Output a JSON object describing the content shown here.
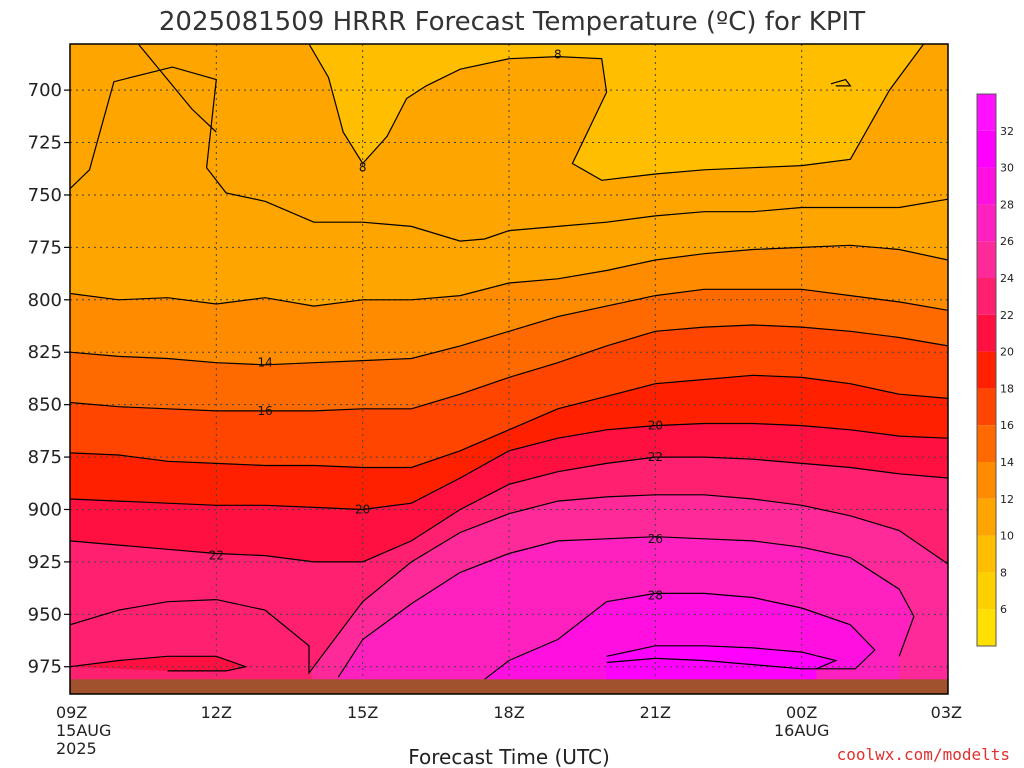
{
  "title": "2025081509 HRRR Forecast Temperature (ºC) for KPIT",
  "credit": "coolwx.com/modelts",
  "colors": {
    "ground": "#a0522d",
    "contour": "#000000",
    "grid": "#444444",
    "palette": [
      {
        "from": 4,
        "to": 6,
        "color": "#ffe000"
      },
      {
        "from": 6,
        "to": 8,
        "color": "#ffd000"
      },
      {
        "from": 8,
        "to": 10,
        "color": "#ffbe00"
      },
      {
        "from": 10,
        "to": 12,
        "color": "#ffa500"
      },
      {
        "from": 12,
        "to": 14,
        "color": "#ff8c00"
      },
      {
        "from": 14,
        "to": 16,
        "color": "#ff6a00"
      },
      {
        "from": 16,
        "to": 18,
        "color": "#ff4500"
      },
      {
        "from": 18,
        "to": 20,
        "color": "#ff2000"
      },
      {
        "from": 20,
        "to": 22,
        "color": "#ff1040"
      },
      {
        "from": 22,
        "to": 24,
        "color": "#ff2070"
      },
      {
        "from": 24,
        "to": 26,
        "color": "#ff2a99"
      },
      {
        "from": 26,
        "to": 28,
        "color": "#ff20c0"
      },
      {
        "from": 28,
        "to": 30,
        "color": "#ff10e0"
      },
      {
        "from": 30,
        "to": 32,
        "color": "#ff00ff"
      },
      {
        "from": 32,
        "to": 34,
        "color": "#ff10ff"
      }
    ]
  },
  "chart_data": {
    "type": "heatmap",
    "title": "2025081509 HRRR Forecast Temperature (ºC) for KPIT",
    "xlabel": "Forecast Time (UTC)",
    "ylabel": "",
    "x_ticks": [
      {
        "label": "09Z",
        "sub": [
          "15AUG",
          "2025"
        ],
        "hour": 9
      },
      {
        "label": "12Z",
        "sub": [],
        "hour": 12
      },
      {
        "label": "15Z",
        "sub": [],
        "hour": 15
      },
      {
        "label": "18Z",
        "sub": [],
        "hour": 18
      },
      {
        "label": "21Z",
        "sub": [],
        "hour": 21
      },
      {
        "label": "00Z",
        "sub": [
          "16AUG"
        ],
        "hour": 24
      },
      {
        "label": "03Z",
        "sub": [],
        "hour": 27
      }
    ],
    "xlim": [
      9,
      27
    ],
    "ylim": [
      988,
      678
    ],
    "y_ticks": [
      700,
      725,
      750,
      775,
      800,
      825,
      850,
      875,
      900,
      925,
      950,
      975
    ],
    "ground_top_hpa": 981,
    "colorbar": {
      "ticks": [
        6,
        8,
        10,
        12,
        14,
        16,
        18,
        20,
        22,
        24,
        26,
        28,
        30,
        32
      ],
      "range": [
        4,
        34
      ]
    },
    "grid": true,
    "contour_levels": [
      8,
      10,
      12,
      14,
      16,
      18,
      20,
      22,
      24,
      26,
      28
    ],
    "contours": [
      {
        "level": 10,
        "points": [
          [
            9,
            747
          ],
          [
            9.4,
            738
          ],
          [
            9.9,
            696
          ],
          [
            11.1,
            689
          ],
          [
            12,
            695
          ],
          [
            11.8,
            737
          ],
          [
            12.2,
            749
          ],
          [
            13,
            753
          ],
          [
            14,
            763
          ],
          [
            15,
            763
          ],
          [
            16,
            765
          ],
          [
            17,
            772
          ],
          [
            17.5,
            771
          ],
          [
            18,
            767
          ],
          [
            19,
            765
          ],
          [
            20,
            763
          ],
          [
            21,
            760
          ],
          [
            22,
            758
          ],
          [
            23,
            758
          ],
          [
            24,
            756
          ],
          [
            25,
            756
          ],
          [
            26,
            756
          ],
          [
            27,
            752
          ]
        ]
      },
      {
        "level": 8,
        "points": [
          [
            10.4,
            678
          ],
          [
            11.5,
            709
          ],
          [
            12,
            720
          ]
        ]
      },
      {
        "level": 8,
        "points": [
          [
            13.9,
            678
          ],
          [
            14.3,
            694
          ],
          [
            14.6,
            720
          ],
          [
            15,
            735
          ],
          [
            15.5,
            722
          ],
          [
            15.9,
            704
          ],
          [
            16.3,
            698
          ],
          [
            17.0,
            690
          ],
          [
            18,
            685
          ],
          [
            19,
            684
          ],
          [
            19.9,
            685
          ],
          [
            20.0,
            701
          ],
          [
            19.3,
            735
          ],
          [
            19.9,
            743
          ],
          [
            21,
            740
          ],
          [
            22,
            738
          ],
          [
            23,
            737
          ],
          [
            24,
            736
          ],
          [
            25,
            733
          ],
          [
            25.8,
            700
          ],
          [
            26.5,
            678
          ]
        ]
      },
      {
        "level": 12,
        "points": [
          [
            9,
            797
          ],
          [
            10,
            800
          ],
          [
            11,
            799
          ],
          [
            12,
            802
          ],
          [
            13,
            799
          ],
          [
            14,
            803
          ],
          [
            15,
            800
          ],
          [
            16,
            800
          ],
          [
            17,
            798
          ],
          [
            18,
            792
          ],
          [
            19,
            790
          ],
          [
            20,
            786
          ],
          [
            21,
            781
          ],
          [
            22,
            778
          ],
          [
            23,
            776
          ],
          [
            24,
            775
          ],
          [
            25,
            774
          ],
          [
            26,
            776
          ],
          [
            27,
            781
          ]
        ]
      },
      {
        "level": 14,
        "points": [
          [
            9,
            825
          ],
          [
            10,
            827
          ],
          [
            11,
            828
          ],
          [
            12,
            830
          ],
          [
            13,
            831
          ],
          [
            14,
            830
          ],
          [
            15,
            829
          ],
          [
            16,
            828
          ],
          [
            17,
            822
          ],
          [
            18,
            815
          ],
          [
            19,
            808
          ],
          [
            20,
            803
          ],
          [
            21,
            798
          ],
          [
            22,
            795
          ],
          [
            23,
            795
          ],
          [
            24,
            795
          ],
          [
            25,
            798
          ],
          [
            26,
            801
          ],
          [
            27,
            805
          ]
        ]
      },
      {
        "level": 16,
        "points": [
          [
            9,
            849
          ],
          [
            10,
            851
          ],
          [
            11,
            852
          ],
          [
            12,
            853
          ],
          [
            13,
            853
          ],
          [
            14,
            853
          ],
          [
            15,
            852
          ],
          [
            16,
            852
          ],
          [
            17,
            845
          ],
          [
            18,
            837
          ],
          [
            19,
            830
          ],
          [
            20,
            822
          ],
          [
            21,
            815
          ],
          [
            22,
            813
          ],
          [
            23,
            812
          ],
          [
            24,
            813
          ],
          [
            25,
            815
          ],
          [
            26,
            818
          ],
          [
            27,
            822
          ]
        ]
      },
      {
        "level": 18,
        "points": [
          [
            9,
            873
          ],
          [
            10,
            874
          ],
          [
            11,
            877
          ],
          [
            12,
            878
          ],
          [
            13,
            879
          ],
          [
            14,
            879
          ],
          [
            15,
            880
          ],
          [
            16,
            880
          ],
          [
            17,
            872
          ],
          [
            18,
            862
          ],
          [
            19,
            852
          ],
          [
            20,
            846
          ],
          [
            21,
            840
          ],
          [
            22,
            838
          ],
          [
            23,
            836
          ],
          [
            24,
            837
          ],
          [
            25,
            840
          ],
          [
            26,
            845
          ],
          [
            27,
            847
          ]
        ]
      },
      {
        "level": 20,
        "points": [
          [
            9,
            895
          ],
          [
            10,
            896
          ],
          [
            11,
            897
          ],
          [
            12,
            898
          ],
          [
            13,
            898
          ],
          [
            14,
            899
          ],
          [
            15,
            900
          ],
          [
            16,
            897
          ],
          [
            17,
            885
          ],
          [
            18,
            872
          ],
          [
            19,
            866
          ],
          [
            20,
            862
          ],
          [
            21,
            860
          ],
          [
            22,
            859
          ],
          [
            23,
            859
          ],
          [
            24,
            860
          ],
          [
            25,
            862
          ],
          [
            26,
            865
          ],
          [
            27,
            866
          ]
        ]
      },
      {
        "level": 22,
        "points": [
          [
            9,
            915
          ],
          [
            10,
            917
          ],
          [
            11,
            919
          ],
          [
            12,
            921
          ],
          [
            13,
            922
          ],
          [
            14,
            925
          ],
          [
            15,
            925
          ],
          [
            16,
            915
          ],
          [
            17,
            900
          ],
          [
            18,
            888
          ],
          [
            19,
            882
          ],
          [
            20,
            878
          ],
          [
            21,
            875
          ],
          [
            22,
            875
          ],
          [
            23,
            876
          ],
          [
            24,
            878
          ],
          [
            25,
            880
          ],
          [
            26,
            883
          ],
          [
            27,
            885
          ]
        ]
      },
      {
        "level": 24,
        "points": [
          [
            9,
            955
          ],
          [
            10.0,
            948
          ],
          [
            11,
            944
          ],
          [
            12,
            943
          ],
          [
            13,
            948
          ],
          [
            13.9,
            965
          ],
          [
            13.9,
            978
          ],
          [
            15,
            944
          ],
          [
            16,
            925
          ],
          [
            17,
            911
          ],
          [
            18,
            902
          ],
          [
            19,
            896
          ],
          [
            20,
            894
          ],
          [
            21,
            893
          ],
          [
            22,
            893
          ],
          [
            23,
            895
          ],
          [
            24,
            898
          ],
          [
            25,
            903
          ],
          [
            26,
            910
          ],
          [
            27,
            926
          ]
        ]
      },
      {
        "level": 24,
        "points": [
          [
            9,
            975
          ],
          [
            10,
            972
          ],
          [
            11,
            970
          ],
          [
            12,
            970
          ],
          [
            12.6,
            975
          ],
          [
            12.2,
            977
          ],
          [
            11,
            977
          ]
        ]
      },
      {
        "level": 26,
        "points": [
          [
            14.5,
            980
          ],
          [
            15,
            962
          ],
          [
            16,
            945
          ],
          [
            17,
            930
          ],
          [
            18,
            921
          ],
          [
            19,
            915
          ],
          [
            20,
            914
          ],
          [
            21,
            913
          ],
          [
            22,
            914
          ],
          [
            23,
            915
          ],
          [
            24,
            918
          ],
          [
            25,
            923
          ],
          [
            26,
            938
          ],
          [
            26.3,
            951
          ],
          [
            26.0,
            970
          ]
        ]
      },
      {
        "level": 28,
        "points": [
          [
            17.5,
            981
          ],
          [
            18,
            972
          ],
          [
            19,
            962
          ],
          [
            20,
            944
          ],
          [
            21,
            940
          ],
          [
            22,
            940
          ],
          [
            23,
            942
          ],
          [
            24,
            947
          ],
          [
            25,
            955
          ],
          [
            25.5,
            967
          ],
          [
            25.1,
            976
          ],
          [
            24,
            976
          ],
          [
            23,
            974
          ],
          [
            22,
            972
          ],
          [
            21,
            971
          ],
          [
            20,
            973
          ]
        ]
      },
      {
        "level": 30,
        "points": [
          [
            20,
            970
          ],
          [
            21,
            965
          ],
          [
            22,
            965
          ],
          [
            23,
            966
          ],
          [
            24,
            968
          ],
          [
            24.7,
            972
          ],
          [
            24.3,
            976
          ]
        ]
      },
      {
        "level": 8,
        "points": [
          [
            24.6,
            697
          ],
          [
            24.9,
            695
          ],
          [
            25.0,
            698
          ],
          [
            24.7,
            698
          ]
        ]
      }
    ],
    "contour_labels": [
      {
        "text": "8",
        "hour": 19.0,
        "hpa": 683
      },
      {
        "text": "8",
        "hour": 15.0,
        "hpa": 737
      },
      {
        "text": "14",
        "hour": 13.0,
        "hpa": 830
      },
      {
        "text": "16",
        "hour": 13.0,
        "hpa": 853
      },
      {
        "text": "20",
        "hour": 15.0,
        "hpa": 900
      },
      {
        "text": "22",
        "hour": 12.0,
        "hpa": 922
      },
      {
        "text": "20",
        "hour": 21.0,
        "hpa": 860
      },
      {
        "text": "22",
        "hour": 21.0,
        "hpa": 875
      },
      {
        "text": "26",
        "hour": 21.0,
        "hpa": 914
      },
      {
        "text": "28",
        "hour": 21.0,
        "hpa": 941
      }
    ]
  }
}
